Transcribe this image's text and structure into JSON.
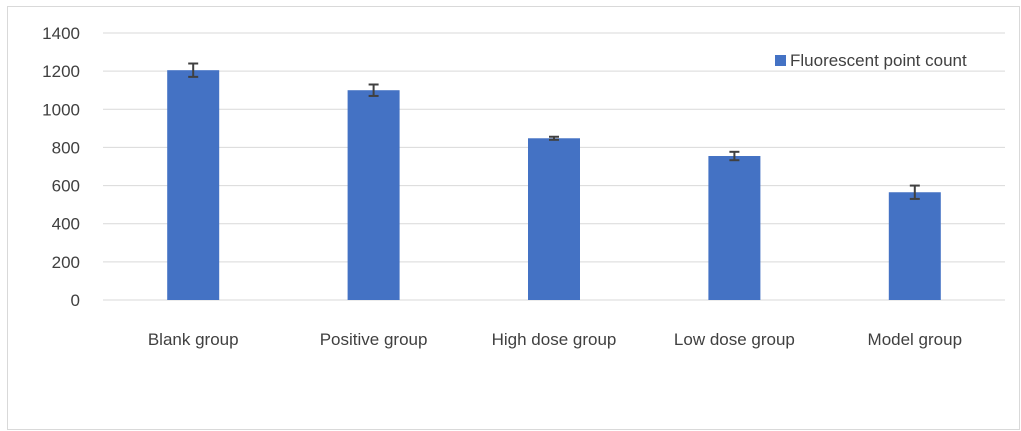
{
  "chart_data": {
    "type": "bar",
    "title": "",
    "xlabel": "",
    "ylabel": "",
    "categories": [
      "Blank group",
      "Positive group",
      "High dose group",
      "Low dose group",
      "Model group"
    ],
    "series": [
      {
        "name": "Fluorescent point count",
        "values": [
          1205,
          1100,
          848,
          755,
          565
        ],
        "error": [
          35,
          30,
          8,
          22,
          35
        ],
        "color": "#4472C4"
      }
    ],
    "ylim": [
      0,
      1400
    ],
    "yticks": [
      0,
      200,
      400,
      600,
      800,
      1000,
      1200,
      1400
    ],
    "grid": true,
    "legend_position": "top-right"
  }
}
